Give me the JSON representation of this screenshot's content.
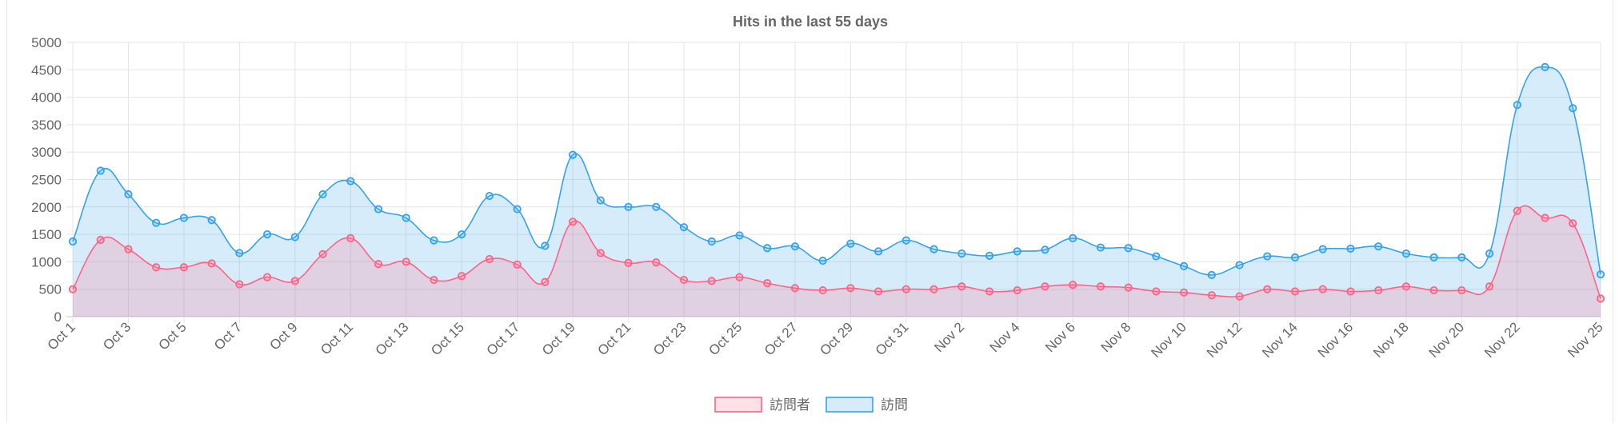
{
  "chart_data": {
    "type": "area",
    "title": "Hits in the last 55 days",
    "xlabel": "",
    "ylabel": "",
    "ylim": [
      0,
      5000
    ],
    "yticks": [
      0,
      500,
      1000,
      1500,
      2000,
      2500,
      3000,
      3500,
      4000,
      4500,
      5000
    ],
    "grid": true,
    "legend_position": "bottom",
    "categories": [
      "Oct 1",
      "Oct 2",
      "Oct 3",
      "Oct 4",
      "Oct 5",
      "Oct 6",
      "Oct 7",
      "Oct 8",
      "Oct 9",
      "Oct 10",
      "Oct 11",
      "Oct 12",
      "Oct 13",
      "Oct 14",
      "Oct 15",
      "Oct 16",
      "Oct 17",
      "Oct 18",
      "Oct 19",
      "Oct 20",
      "Oct 21",
      "Oct 22",
      "Oct 23",
      "Oct 24",
      "Oct 25",
      "Oct 26",
      "Oct 27",
      "Oct 28",
      "Oct 29",
      "Oct 30",
      "Oct 31",
      "Nov 1",
      "Nov 2",
      "Nov 3",
      "Nov 4",
      "Nov 5",
      "Nov 6",
      "Nov 7",
      "Nov 8",
      "Nov 9",
      "Nov 10",
      "Nov 11",
      "Nov 12",
      "Nov 13",
      "Nov 14",
      "Nov 15",
      "Nov 16",
      "Nov 17",
      "Nov 18",
      "Nov 19",
      "Nov 20",
      "Nov 21",
      "Nov 22",
      "Nov 23",
      "Nov 24",
      "Nov 25"
    ],
    "xtick_labels": [
      "Oct 1",
      "Oct 3",
      "Oct 5",
      "Oct 7",
      "Oct 9",
      "Oct 11",
      "Oct 13",
      "Oct 15",
      "Oct 17",
      "Oct 19",
      "Oct 21",
      "Oct 23",
      "Oct 25",
      "Oct 27",
      "Oct 29",
      "Oct 31",
      "Nov 2",
      "Nov 4",
      "Nov 6",
      "Nov 8",
      "Nov 10",
      "Nov 12",
      "Nov 14",
      "Nov 16",
      "Nov 18",
      "Nov 20",
      "Nov 22",
      "Nov 25"
    ],
    "series": [
      {
        "name": "訪問者",
        "color": "#ff6384",
        "fill": "rgba(255,99,132,0.2)",
        "values": [
          500,
          1400,
          1230,
          900,
          900,
          970,
          590,
          720,
          650,
          1140,
          1430,
          960,
          1000,
          670,
          740,
          1050,
          950,
          630,
          1730,
          1160,
          980,
          990,
          670,
          650,
          720,
          610,
          520,
          480,
          520,
          460,
          500,
          500,
          550,
          460,
          480,
          550,
          580,
          550,
          530,
          460,
          440,
          390,
          370,
          500,
          460,
          500,
          460,
          480,
          550,
          480,
          480,
          550,
          1930,
          1800,
          1700,
          330
        ]
      },
      {
        "name": "訪問",
        "color": "#36a2eb",
        "fill": "rgba(54,162,235,0.2)",
        "values": [
          1370,
          2660,
          2230,
          1710,
          1800,
          1760,
          1160,
          1500,
          1450,
          2230,
          2470,
          1960,
          1800,
          1390,
          1500,
          2200,
          1960,
          1290,
          2950,
          2120,
          2000,
          2000,
          1630,
          1370,
          1480,
          1250,
          1280,
          1020,
          1330,
          1190,
          1390,
          1230,
          1150,
          1110,
          1190,
          1220,
          1430,
          1260,
          1250,
          1100,
          920,
          760,
          940,
          1100,
          1080,
          1230,
          1240,
          1280,
          1150,
          1080,
          1080,
          1150,
          3860,
          4550,
          3800,
          770
        ]
      }
    ]
  }
}
